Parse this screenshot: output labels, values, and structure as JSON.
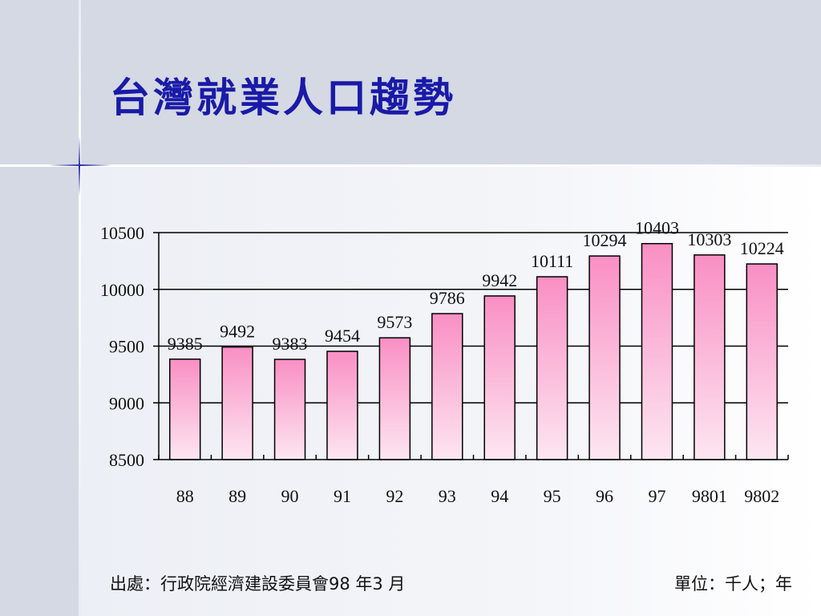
{
  "slide": {
    "title": "台灣就業人口趨勢",
    "source_note": "出處：行政院經濟建設委員會98 年3 月",
    "unit_note": "單位：千人；年"
  },
  "chart_data": {
    "type": "bar",
    "title": "",
    "xlabel": "",
    "ylabel": "",
    "categories": [
      "88",
      "89",
      "90",
      "91",
      "92",
      "93",
      "94",
      "95",
      "96",
      "97",
      "9801",
      "9802"
    ],
    "values": [
      9385,
      9492,
      9383,
      9454,
      9573,
      9786,
      9942,
      10111,
      10294,
      10403,
      10303,
      10224
    ],
    "ylim": [
      8500,
      10500
    ],
    "yticks": [
      8500,
      9000,
      9500,
      10000,
      10500
    ],
    "grid": true,
    "data_labels": true,
    "colors": {
      "bar_top": "#f98fc4",
      "bar_bottom": "#fde6f1",
      "bar_stroke": "#000000",
      "grid": "#000000"
    }
  }
}
